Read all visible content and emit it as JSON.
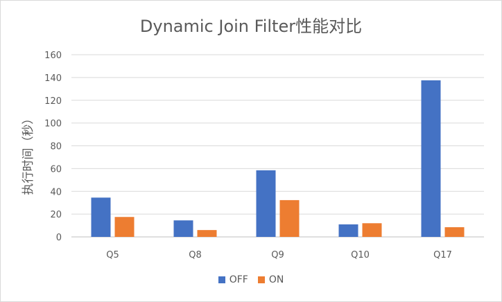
{
  "chart_data": {
    "type": "bar",
    "title": "Dynamic Join Filter性能对比",
    "xlabel": "",
    "ylabel": "执行时间（秒）",
    "categories": [
      "Q5",
      "Q8",
      "Q9",
      "Q10",
      "Q17"
    ],
    "series": [
      {
        "name": "OFF",
        "color": "#4472C4",
        "values": [
          34.5,
          14.5,
          58.5,
          11,
          137.5
        ]
      },
      {
        "name": "ON",
        "color": "#ED7D31",
        "values": [
          17.5,
          6,
          32.3,
          12,
          8.5
        ]
      }
    ],
    "ylim": [
      0,
      160
    ],
    "yticks": [
      "0",
      "20",
      "40",
      "60",
      "80",
      "100",
      "120",
      "140",
      "160"
    ],
    "grid": true,
    "legend": "bottom"
  }
}
